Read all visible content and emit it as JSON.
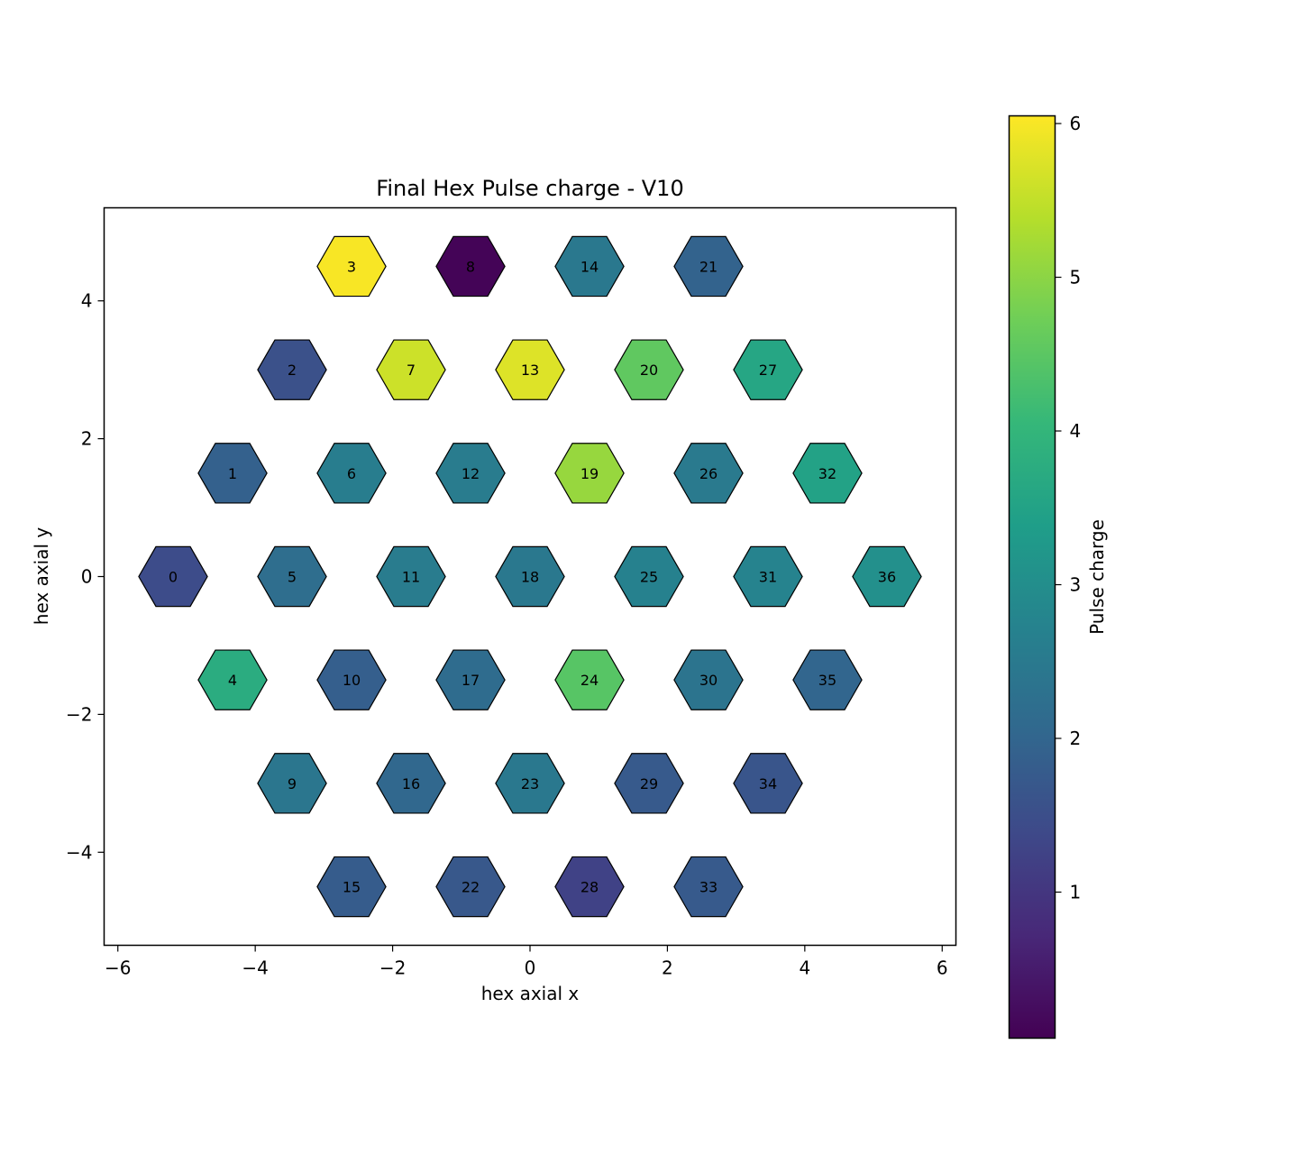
{
  "chart_data": {
    "type": "heatmap",
    "title": "Final Hex Pulse charge - V10",
    "xlabel": "hex axial x",
    "ylabel": "hex axial y",
    "colorbar_label": "Pulse charge",
    "colormap": "viridis",
    "clim": [
      0.05,
      6.05
    ],
    "xlim": [
      -6.2,
      6.2
    ],
    "ylim": [
      -5.35,
      5.35
    ],
    "xticks": [
      -6,
      -4,
      -2,
      0,
      2,
      4,
      6
    ],
    "yticks": [
      -4,
      -2,
      0,
      2,
      4
    ],
    "colorbar_ticks": [
      1,
      2,
      3,
      4,
      5,
      6
    ],
    "tick_labels": {
      "x": [
        "−6",
        "−4",
        "−2",
        "0",
        "2",
        "4",
        "6"
      ],
      "y": [
        "−4",
        "−2",
        "0",
        "2",
        "4"
      ],
      "colorbar": [
        "1",
        "2",
        "3",
        "4",
        "5",
        "6"
      ]
    },
    "hexagons": [
      {
        "id": "0",
        "x": -5.196,
        "y": 0.0,
        "value": 1.45
      },
      {
        "id": "1",
        "x": -4.33,
        "y": 1.5,
        "value": 1.9
      },
      {
        "id": "2",
        "x": -3.464,
        "y": 3.0,
        "value": 1.55
      },
      {
        "id": "3",
        "x": -2.598,
        "y": 4.5,
        "value": 6.0
      },
      {
        "id": "4",
        "x": -4.33,
        "y": -1.5,
        "value": 3.75
      },
      {
        "id": "5",
        "x": -3.464,
        "y": 0.0,
        "value": 2.2
      },
      {
        "id": "6",
        "x": -2.598,
        "y": 1.5,
        "value": 2.6
      },
      {
        "id": "7",
        "x": -1.732,
        "y": 3.0,
        "value": 5.6
      },
      {
        "id": "8",
        "x": -0.866,
        "y": 4.5,
        "value": 0.1
      },
      {
        "id": "9",
        "x": -3.464,
        "y": -3.0,
        "value": 2.4
      },
      {
        "id": "10",
        "x": -2.598,
        "y": -1.5,
        "value": 1.85
      },
      {
        "id": "11",
        "x": -1.732,
        "y": 0.0,
        "value": 2.55
      },
      {
        "id": "12",
        "x": -0.866,
        "y": 1.5,
        "value": 2.55
      },
      {
        "id": "13",
        "x": 0.0,
        "y": 3.0,
        "value": 5.75
      },
      {
        "id": "14",
        "x": 0.866,
        "y": 4.5,
        "value": 2.45
      },
      {
        "id": "15",
        "x": -2.598,
        "y": -4.5,
        "value": 1.8
      },
      {
        "id": "16",
        "x": -1.732,
        "y": -3.0,
        "value": 2.05
      },
      {
        "id": "17",
        "x": -0.866,
        "y": -1.5,
        "value": 2.15
      },
      {
        "id": "18",
        "x": 0.0,
        "y": 0.0,
        "value": 2.45
      },
      {
        "id": "19",
        "x": 0.866,
        "y": 1.5,
        "value": 5.1
      },
      {
        "id": "20",
        "x": 1.732,
        "y": 3.0,
        "value": 4.55
      },
      {
        "id": "21",
        "x": 2.598,
        "y": 4.5,
        "value": 1.95
      },
      {
        "id": "22",
        "x": -0.866,
        "y": -4.5,
        "value": 1.7
      },
      {
        "id": "23",
        "x": 0.0,
        "y": -3.0,
        "value": 2.45
      },
      {
        "id": "24",
        "x": 0.866,
        "y": -1.5,
        "value": 4.45
      },
      {
        "id": "25",
        "x": 1.732,
        "y": 0.0,
        "value": 2.7
      },
      {
        "id": "26",
        "x": 2.598,
        "y": 1.5,
        "value": 2.5
      },
      {
        "id": "27",
        "x": 3.464,
        "y": 3.0,
        "value": 3.6
      },
      {
        "id": "28",
        "x": 0.866,
        "y": -4.5,
        "value": 1.25
      },
      {
        "id": "29",
        "x": 1.732,
        "y": -3.0,
        "value": 1.75
      },
      {
        "id": "30",
        "x": 2.598,
        "y": -1.5,
        "value": 2.35
      },
      {
        "id": "31",
        "x": 3.464,
        "y": 0.0,
        "value": 2.75
      },
      {
        "id": "32",
        "x": 4.33,
        "y": 1.5,
        "value": 3.5
      },
      {
        "id": "33",
        "x": 2.598,
        "y": -4.5,
        "value": 1.75
      },
      {
        "id": "34",
        "x": 3.464,
        "y": -3.0,
        "value": 1.65
      },
      {
        "id": "35",
        "x": 4.33,
        "y": -1.5,
        "value": 2.0
      },
      {
        "id": "36",
        "x": 5.196,
        "y": 0.0,
        "value": 3.05
      }
    ]
  }
}
